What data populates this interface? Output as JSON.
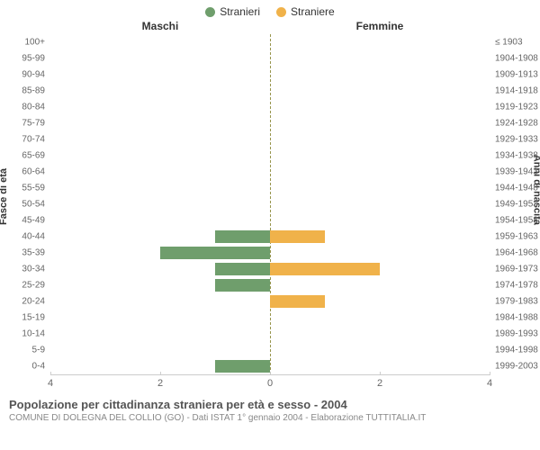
{
  "legend": {
    "male": {
      "label": "Stranieri",
      "color": "#6f9e6c"
    },
    "female": {
      "label": "Straniere",
      "color": "#f0b24a"
    }
  },
  "headers": {
    "left": "Maschi",
    "right": "Femmine"
  },
  "axis_titles": {
    "left": "Fasce di età",
    "right": "Anni di nascita"
  },
  "chart": {
    "type": "population-pyramid",
    "xlim": 4,
    "xticks_left": [
      4,
      2,
      0
    ],
    "xticks_right": [
      0,
      2,
      4
    ],
    "bar_height_pct": 76,
    "background_color": "#ffffff",
    "divider_color": "#97954c",
    "male_color": "#6f9e6c",
    "female_color": "#f0b24a",
    "rows": [
      {
        "age": "100+",
        "birth": "≤ 1903",
        "m": 0,
        "f": 0
      },
      {
        "age": "95-99",
        "birth": "1904-1908",
        "m": 0,
        "f": 0
      },
      {
        "age": "90-94",
        "birth": "1909-1913",
        "m": 0,
        "f": 0
      },
      {
        "age": "85-89",
        "birth": "1914-1918",
        "m": 0,
        "f": 0
      },
      {
        "age": "80-84",
        "birth": "1919-1923",
        "m": 0,
        "f": 0
      },
      {
        "age": "75-79",
        "birth": "1924-1928",
        "m": 0,
        "f": 0
      },
      {
        "age": "70-74",
        "birth": "1929-1933",
        "m": 0,
        "f": 0
      },
      {
        "age": "65-69",
        "birth": "1934-1938",
        "m": 0,
        "f": 0
      },
      {
        "age": "60-64",
        "birth": "1939-1943",
        "m": 0,
        "f": 0
      },
      {
        "age": "55-59",
        "birth": "1944-1948",
        "m": 0,
        "f": 0
      },
      {
        "age": "50-54",
        "birth": "1949-1953",
        "m": 0,
        "f": 0
      },
      {
        "age": "45-49",
        "birth": "1954-1958",
        "m": 0,
        "f": 0
      },
      {
        "age": "40-44",
        "birth": "1959-1963",
        "m": 1,
        "f": 1
      },
      {
        "age": "35-39",
        "birth": "1964-1968",
        "m": 2,
        "f": 0
      },
      {
        "age": "30-34",
        "birth": "1969-1973",
        "m": 1,
        "f": 2
      },
      {
        "age": "25-29",
        "birth": "1974-1978",
        "m": 1,
        "f": 0
      },
      {
        "age": "20-24",
        "birth": "1979-1983",
        "m": 0,
        "f": 1
      },
      {
        "age": "15-19",
        "birth": "1984-1988",
        "m": 0,
        "f": 0
      },
      {
        "age": "10-14",
        "birth": "1989-1993",
        "m": 0,
        "f": 0
      },
      {
        "age": "5-9",
        "birth": "1994-1998",
        "m": 0,
        "f": 0
      },
      {
        "age": "0-4",
        "birth": "1999-2003",
        "m": 1,
        "f": 0
      }
    ]
  },
  "caption": {
    "title": "Popolazione per cittadinanza straniera per età e sesso - 2004",
    "sub": "COMUNE DI DOLEGNA DEL COLLIO (GO) - Dati ISTAT 1° gennaio 2004 - Elaborazione TUTTITALIA.IT"
  },
  "label_fontsize": 10,
  "tick_fontsize": 11
}
